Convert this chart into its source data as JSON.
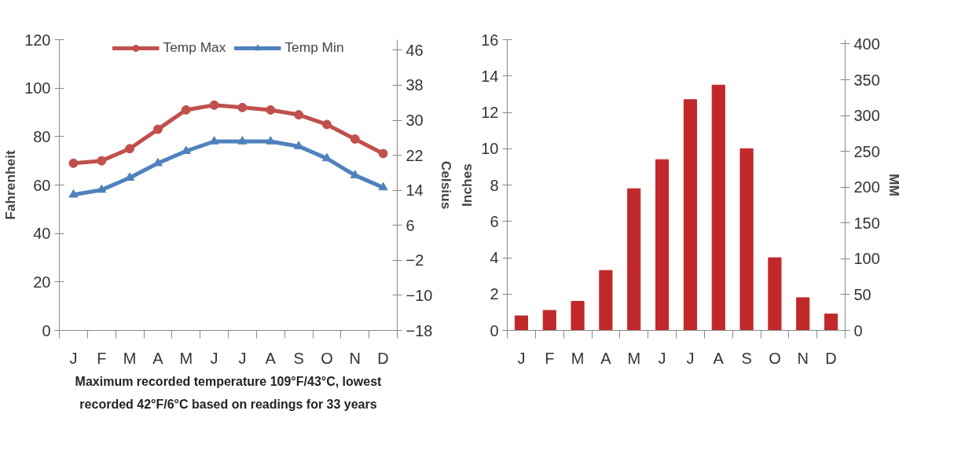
{
  "chart_data": [
    {
      "type": "line",
      "categories": [
        "J",
        "F",
        "M",
        "A",
        "M",
        "J",
        "J",
        "A",
        "S",
        "O",
        "N",
        "D"
      ],
      "series": [
        {
          "name": "Temp Max",
          "color": "#c0504d",
          "marker": "circle",
          "values": [
            69,
            70,
            75,
            83,
            91,
            93,
            92,
            91,
            89,
            85,
            79,
            73
          ]
        },
        {
          "name": "Temp Min",
          "color": "#4f81bd",
          "marker": "triangle",
          "values": [
            56,
            58,
            63,
            69,
            74,
            78,
            78,
            78,
            76,
            71,
            64,
            59
          ]
        }
      ],
      "ylabel": "Fahrenheit",
      "y2label": "Celsius",
      "ylim": [
        0,
        120
      ],
      "yticks": [
        0,
        20,
        40,
        60,
        80,
        100,
        120
      ],
      "y2lim": [
        -18,
        48.4
      ],
      "y2ticks": [
        -18,
        -10,
        -2,
        6,
        14,
        22,
        30,
        38,
        46
      ],
      "legend": "top",
      "grid": false,
      "annotations": [
        "Maximum recorded temperature 109°F/43°C, lowest recorded 42°F/6°C based on readings for 33 years"
      ]
    },
    {
      "type": "bar",
      "categories": [
        "J",
        "F",
        "M",
        "A",
        "M",
        "J",
        "J",
        "A",
        "S",
        "O",
        "N",
        "D"
      ],
      "values": [
        0.8,
        1.1,
        1.6,
        3.3,
        7.8,
        9.4,
        12.7,
        13.5,
        10.0,
        4.0,
        1.8,
        0.9
      ],
      "color": "#c0282a",
      "ylabel": "Inches",
      "y2label": "MM",
      "ylim": [
        0,
        16
      ],
      "yticks": [
        0,
        2,
        4,
        6,
        8,
        10,
        12,
        14,
        16
      ],
      "y2lim": [
        0,
        406
      ],
      "y2ticks": [
        0,
        50,
        100,
        150,
        200,
        250,
        300,
        350,
        400
      ],
      "grid": false
    }
  ]
}
